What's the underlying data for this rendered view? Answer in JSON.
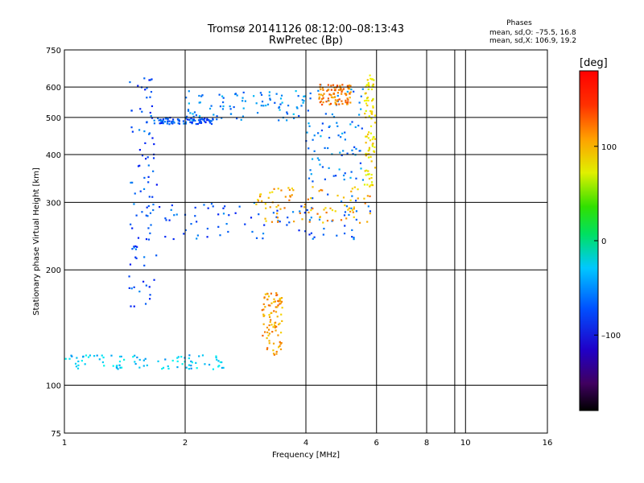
{
  "chart_data": {
    "type": "scatter",
    "title": "Tromsø 20141126 08:12:00–08:13:43",
    "subtitle": "RwPretec (Bp)",
    "xlabel": "Frequency [MHz]",
    "ylabel": "Stationary phase Virtual Height [km]",
    "x_scale": "log",
    "y_scale": "log",
    "xlim": [
      1,
      16
    ],
    "ylim": [
      75,
      750
    ],
    "x_ticks": [
      1,
      2,
      4,
      6,
      8,
      10,
      16
    ],
    "x_tick_labels": [
      "1",
      "2",
      "4",
      "6",
      "8",
      "10",
      "16"
    ],
    "x_minor_grid": [
      9.4
    ],
    "y_ticks": [
      75,
      100,
      200,
      300,
      400,
      500,
      600,
      750
    ],
    "y_tick_labels": [
      "75",
      "100",
      "200",
      "300",
      "400",
      "500",
      "600",
      "750"
    ],
    "grid": true,
    "phase_box": {
      "title": "Phases",
      "line1": "mean, sd,O: –75.5, 16.8",
      "line2": "mean, sd,X: 106.9, 19.2"
    },
    "colorbar": {
      "label": "[deg]",
      "range": [
        -180,
        180
      ],
      "ticks": [
        100,
        0,
        -100
      ],
      "tick_labels": [
        "100",
        "0",
        "–100"
      ],
      "colormap": "rainbow"
    },
    "series": [
      {
        "x_range": [
          1.6,
          2.35
        ],
        "y": 490,
        "phase": -115
      },
      {
        "x_range": [
          2.0,
          4.0
        ],
        "y_range": [
          490,
          590
        ],
        "phase": -95
      },
      {
        "x_range": [
          1.6,
          5.8
        ],
        "y_range": [
          240,
          300
        ],
        "phase": -112
      },
      {
        "x_range": [
          4.0,
          5.6
        ],
        "y_range": [
          300,
          610
        ],
        "phase": -100
      },
      {
        "x_range": [
          3.0,
          5.9
        ],
        "y_range": [
          265,
          330
        ],
        "phase": 125
      },
      {
        "x_range": [
          5.6,
          5.95
        ],
        "y_range": [
          330,
          650
        ],
        "phase": 105
      },
      {
        "x_range": [
          4.3,
          5.2
        ],
        "y_range": [
          540,
          610
        ],
        "phase": 140
      },
      {
        "x_range": [
          1.45,
          1.7
        ],
        "y_range": [
          160,
          640
        ],
        "phase": -115
      },
      {
        "x_range": [
          1.0,
          2.5
        ],
        "y_range": [
          110,
          120
        ],
        "phase": -75
      },
      {
        "x_range": [
          3.1,
          3.5
        ],
        "y_range": [
          120,
          175
        ],
        "phase": 130
      }
    ]
  }
}
